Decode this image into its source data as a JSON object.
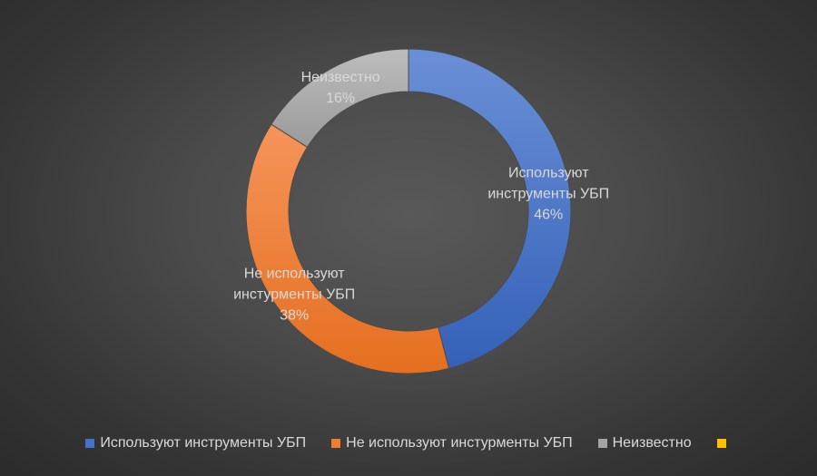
{
  "chart_data": {
    "type": "pie",
    "donut": true,
    "title": "",
    "series": [
      {
        "name": "Используют инструменты УБП",
        "label_lines": [
          "Используют",
          "инструменты УБП"
        ],
        "value": 46,
        "value_label": "46%",
        "color": "#4472c4"
      },
      {
        "name": "Не используют инстурменты УБП",
        "label_lines": [
          "Не используют",
          "инстурменты УБП"
        ],
        "value": 38,
        "value_label": "38%",
        "color": "#ed7d31"
      },
      {
        "name": "Неизвестно",
        "label_lines": [
          "Неизвестно"
        ],
        "value": 16,
        "value_label": "16%",
        "color": "#a5a5a5"
      },
      {
        "name": "",
        "label_lines": [],
        "value": 0,
        "value_label": "",
        "color": "#ffc000"
      }
    ],
    "legend_position": "bottom"
  }
}
